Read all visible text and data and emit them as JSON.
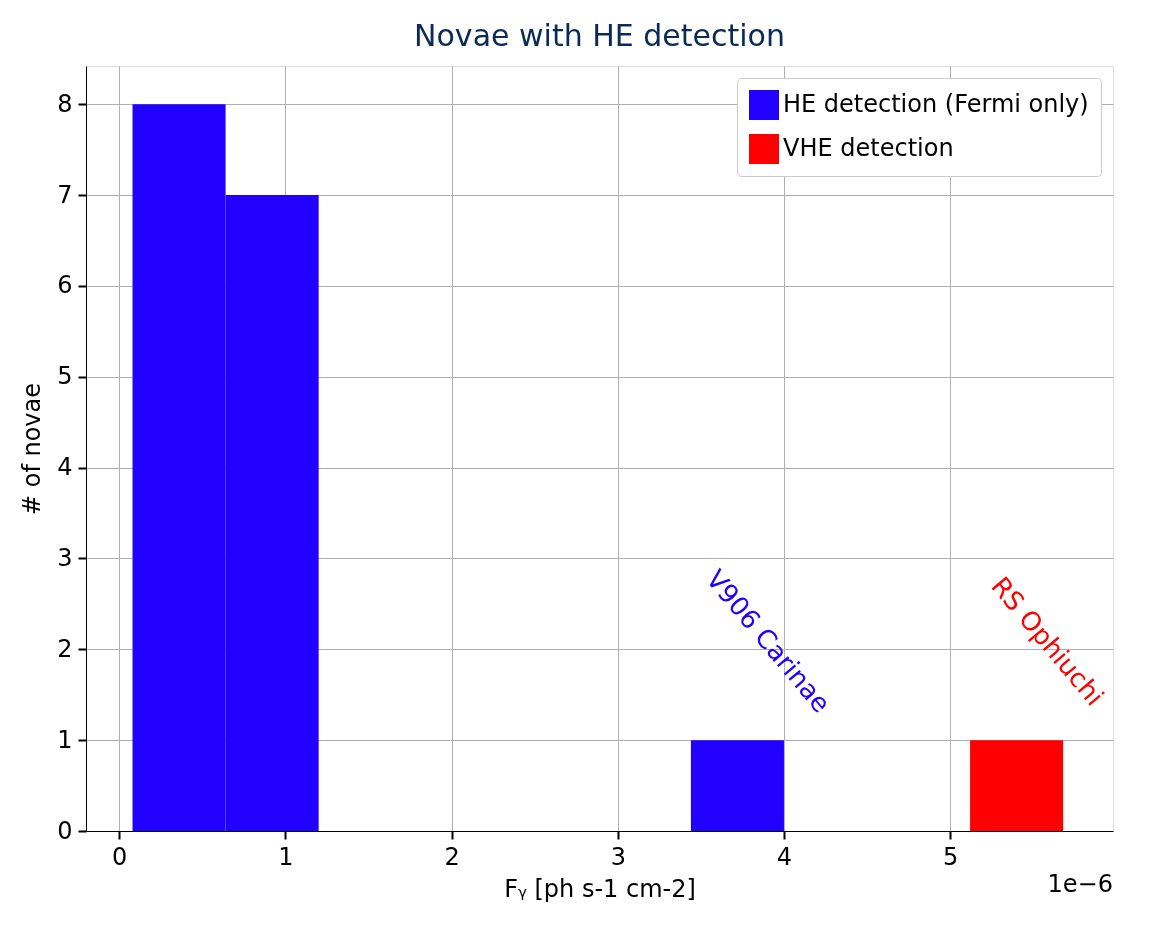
{
  "chart_data": {
    "type": "histogram",
    "title": "Novae with HE detection",
    "xlabel": "Fᵧ [ph s-1 cm-2]",
    "ylabel": "# of novae",
    "bins": [
      0.08,
      0.64,
      1.2,
      1.76,
      2.32,
      2.88,
      3.44,
      4.0,
      4.56,
      5.12,
      5.68
    ],
    "series": [
      {
        "name": "HE detection (Fermi only)",
        "color": "#2200ff",
        "values": [
          8,
          7,
          0,
          0,
          0,
          0,
          1,
          0,
          0,
          0
        ]
      },
      {
        "name": "VHE detection",
        "color": "#ff0000",
        "values": [
          0,
          0,
          0,
          0,
          0,
          0,
          0,
          0,
          0,
          1
        ]
      }
    ],
    "xlim": [
      -0.2,
      5.98
    ],
    "ylim": [
      0,
      8.42
    ],
    "xticks": [
      0,
      1,
      2,
      3,
      4,
      5
    ],
    "yticks": [
      0,
      1,
      2,
      3,
      4,
      5,
      6,
      7,
      8
    ],
    "annotations": [
      "V906 Carinae",
      "RS Ophiuchi",
      "1e−6"
    ],
    "grid": true,
    "legend": "top right"
  }
}
